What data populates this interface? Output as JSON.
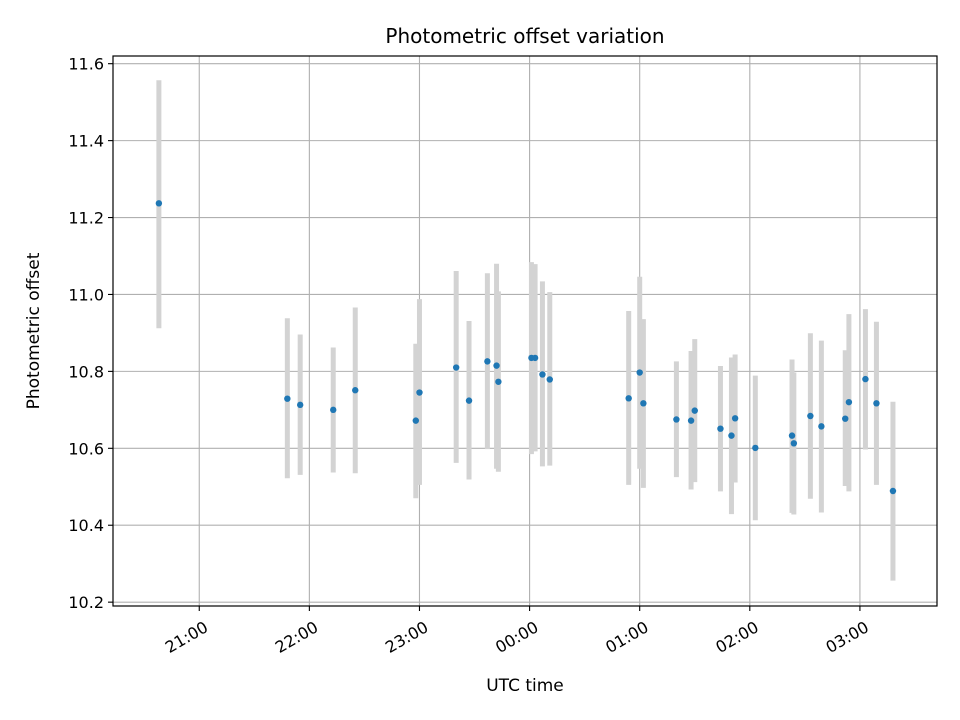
{
  "chart_data": {
    "type": "scatter",
    "title": "Photometric offset variation",
    "xlabel": "UTC time",
    "ylabel": "Photometric offset",
    "x_unit": "minutes after 21:00 UTC",
    "xlim": [
      -47,
      402
    ],
    "ylim": [
      10.19,
      11.62
    ],
    "grid": true,
    "x_ticks": [
      {
        "value": 0,
        "label": "21:00"
      },
      {
        "value": 60,
        "label": "22:00"
      },
      {
        "value": 120,
        "label": "23:00"
      },
      {
        "value": 180,
        "label": "00:00"
      },
      {
        "value": 240,
        "label": "01:00"
      },
      {
        "value": 300,
        "label": "02:00"
      },
      {
        "value": 360,
        "label": "03:00"
      }
    ],
    "y_ticks": [
      {
        "value": 10.2,
        "label": "10.2"
      },
      {
        "value": 10.4,
        "label": "10.4"
      },
      {
        "value": 10.6,
        "label": "10.6"
      },
      {
        "value": 10.8,
        "label": "10.8"
      },
      {
        "value": 11.0,
        "label": "11.0"
      },
      {
        "value": 11.2,
        "label": "11.2"
      },
      {
        "value": 11.4,
        "label": "11.4"
      },
      {
        "value": 11.6,
        "label": "11.6"
      }
    ],
    "colors": {
      "marker": "#1f77b4",
      "errorbar": "#d3d3d3",
      "grid": "#b0b0b0",
      "axes": "#000000"
    },
    "points": [
      {
        "x": -22,
        "y": 11.237,
        "lo": 10.912,
        "hi": 11.557
      },
      {
        "x": 48,
        "y": 10.729,
        "lo": 10.522,
        "hi": 10.938
      },
      {
        "x": 55,
        "y": 10.713,
        "lo": 10.531,
        "hi": 10.896
      },
      {
        "x": 73,
        "y": 10.7,
        "lo": 10.537,
        "hi": 10.862
      },
      {
        "x": 85,
        "y": 10.751,
        "lo": 10.535,
        "hi": 10.966
      },
      {
        "x": 118,
        "y": 10.672,
        "lo": 10.47,
        "hi": 10.872
      },
      {
        "x": 120,
        "y": 10.745,
        "lo": 10.505,
        "hi": 10.988
      },
      {
        "x": 140,
        "y": 10.81,
        "lo": 10.562,
        "hi": 11.061
      },
      {
        "x": 147,
        "y": 10.724,
        "lo": 10.519,
        "hi": 10.931
      },
      {
        "x": 157,
        "y": 10.826,
        "lo": 10.598,
        "hi": 11.055
      },
      {
        "x": 162,
        "y": 10.815,
        "lo": 10.547,
        "hi": 11.08
      },
      {
        "x": 163,
        "y": 10.773,
        "lo": 10.539,
        "hi": 11.008
      },
      {
        "x": 181,
        "y": 10.835,
        "lo": 10.585,
        "hi": 11.084
      },
      {
        "x": 183,
        "y": 10.835,
        "lo": 10.592,
        "hi": 11.079
      },
      {
        "x": 187,
        "y": 10.792,
        "lo": 10.553,
        "hi": 11.034
      },
      {
        "x": 191,
        "y": 10.779,
        "lo": 10.555,
        "hi": 11.006
      },
      {
        "x": 234,
        "y": 10.73,
        "lo": 10.505,
        "hi": 10.957
      },
      {
        "x": 240,
        "y": 10.797,
        "lo": 10.547,
        "hi": 11.046
      },
      {
        "x": 242,
        "y": 10.717,
        "lo": 10.497,
        "hi": 10.936
      },
      {
        "x": 260,
        "y": 10.675,
        "lo": 10.525,
        "hi": 10.826
      },
      {
        "x": 268,
        "y": 10.672,
        "lo": 10.493,
        "hi": 10.853
      },
      {
        "x": 270,
        "y": 10.698,
        "lo": 10.512,
        "hi": 10.884
      },
      {
        "x": 284,
        "y": 10.651,
        "lo": 10.488,
        "hi": 10.814
      },
      {
        "x": 290,
        "y": 10.633,
        "lo": 10.429,
        "hi": 10.836
      },
      {
        "x": 292,
        "y": 10.678,
        "lo": 10.511,
        "hi": 10.844
      },
      {
        "x": 303,
        "y": 10.601,
        "lo": 10.413,
        "hi": 10.789
      },
      {
        "x": 323,
        "y": 10.633,
        "lo": 10.432,
        "hi": 10.831
      },
      {
        "x": 324,
        "y": 10.613,
        "lo": 10.428,
        "hi": 10.797
      },
      {
        "x": 333,
        "y": 10.684,
        "lo": 10.469,
        "hi": 10.899
      },
      {
        "x": 339,
        "y": 10.657,
        "lo": 10.433,
        "hi": 10.88
      },
      {
        "x": 352,
        "y": 10.677,
        "lo": 10.502,
        "hi": 10.855
      },
      {
        "x": 354,
        "y": 10.72,
        "lo": 10.488,
        "hi": 10.949
      },
      {
        "x": 363,
        "y": 10.78,
        "lo": 10.597,
        "hi": 10.962
      },
      {
        "x": 369,
        "y": 10.717,
        "lo": 10.505,
        "hi": 10.929
      },
      {
        "x": 378,
        "y": 10.489,
        "lo": 10.256,
        "hi": 10.721
      }
    ]
  }
}
